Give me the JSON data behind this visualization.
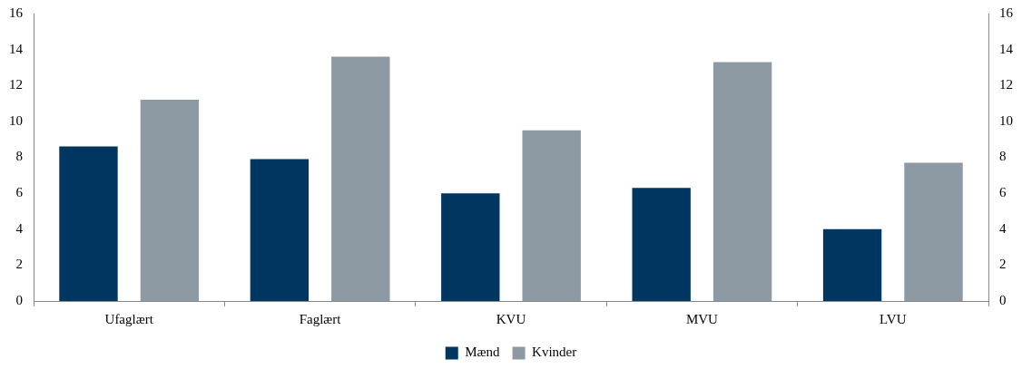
{
  "chart_data": {
    "type": "bar",
    "categories": [
      "Ufaglært",
      "Faglært",
      "KVU",
      "MVU",
      "LVU"
    ],
    "series": [
      {
        "name": "Mænd",
        "color": "#003660",
        "values": [
          8.6,
          7.9,
          6.0,
          6.3,
          4.0
        ]
      },
      {
        "name": "Kvinder",
        "color": "#8d9aa3",
        "values": [
          11.2,
          13.6,
          9.5,
          13.3,
          7.7
        ]
      }
    ],
    "ylim": [
      0,
      16
    ],
    "yticks": [
      0,
      2,
      4,
      6,
      8,
      10,
      12,
      14,
      16
    ],
    "y2lim": [
      0,
      16
    ],
    "y2ticks": [
      0,
      2,
      4,
      6,
      8,
      10,
      12,
      14,
      16
    ],
    "grid": false,
    "legend": "bottom"
  }
}
